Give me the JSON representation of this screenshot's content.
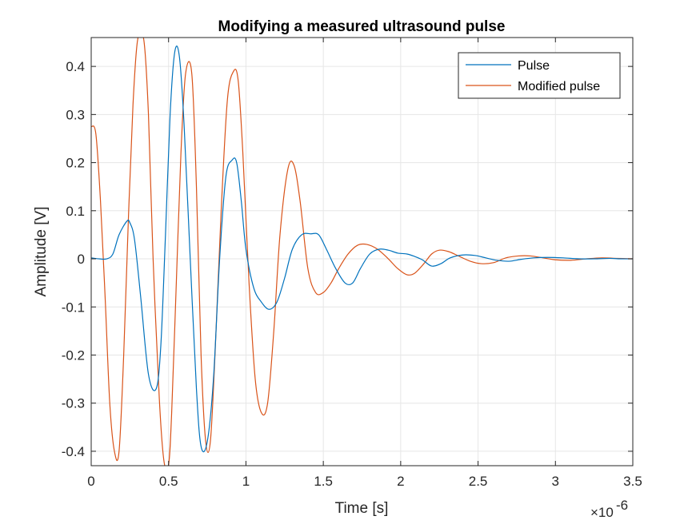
{
  "chart_data": {
    "type": "line",
    "title": "Modifying a measured ultrasound pulse",
    "xlabel": "Time [s]",
    "ylabel": "Amplitude [V]",
    "x_multiplier_label": "×10",
    "x_multiplier_exponent": "-6",
    "xlim": [
      0,
      3.5
    ],
    "ylim": [
      -0.43,
      0.46
    ],
    "x_ticks": [
      0,
      0.5,
      1,
      1.5,
      2,
      2.5,
      3,
      3.5
    ],
    "x_tick_labels": [
      "0",
      "0.5",
      "1",
      "1.5",
      "2",
      "2.5",
      "3",
      "3.5"
    ],
    "y_ticks": [
      -0.4,
      -0.3,
      -0.2,
      -0.1,
      0,
      0.1,
      0.2,
      0.3,
      0.4
    ],
    "y_tick_labels": [
      "-0.4",
      "-0.3",
      "-0.2",
      "-0.1",
      "0",
      "0.1",
      "0.2",
      "0.3",
      "0.4"
    ],
    "grid": true,
    "legend_position": "top-right",
    "series": [
      {
        "name": "Pulse",
        "color": "#0072BD",
        "x": [
          0,
          0.05,
          0.1,
          0.14,
          0.18,
          0.23,
          0.25,
          0.28,
          0.32,
          0.37,
          0.42,
          0.45,
          0.48,
          0.51,
          0.54,
          0.57,
          0.6,
          0.64,
          0.68,
          0.71,
          0.75,
          0.79,
          0.83,
          0.87,
          0.91,
          0.94,
          0.97,
          1.0,
          1.05,
          1.1,
          1.15,
          1.2,
          1.25,
          1.3,
          1.36,
          1.42,
          1.47,
          1.52,
          1.58,
          1.64,
          1.69,
          1.74,
          1.8,
          1.86,
          1.92,
          1.98,
          2.04,
          2.09,
          2.14,
          2.2,
          2.26,
          2.32,
          2.4,
          2.48,
          2.55,
          2.62,
          2.7,
          2.78,
          2.86,
          2.95,
          3.05,
          3.15,
          3.25,
          3.35,
          3.42,
          3.5
        ],
        "y": [
          0.002,
          0.0,
          0.0,
          0.01,
          0.05,
          0.078,
          0.075,
          0.04,
          -0.08,
          -0.24,
          -0.27,
          -0.18,
          0.05,
          0.3,
          0.43,
          0.42,
          0.28,
          0.0,
          -0.27,
          -0.39,
          -0.38,
          -0.25,
          0.0,
          0.17,
          0.205,
          0.2,
          0.12,
          0.02,
          -0.06,
          -0.09,
          -0.105,
          -0.09,
          -0.04,
          0.02,
          0.05,
          0.052,
          0.05,
          0.02,
          -0.02,
          -0.05,
          -0.05,
          -0.02,
          0.01,
          0.02,
          0.018,
          0.012,
          0.01,
          0.005,
          -0.002,
          -0.015,
          -0.01,
          0.002,
          0.008,
          0.007,
          0.002,
          -0.003,
          -0.005,
          -0.001,
          0.002,
          0.003,
          0.002,
          0.0,
          0.0,
          0.001,
          0.0,
          0.0
        ]
      },
      {
        "name": "Modified pulse",
        "color": "#D95319",
        "x": [
          0,
          0.03,
          0.06,
          0.09,
          0.12,
          0.15,
          0.18,
          0.21,
          0.24,
          0.27,
          0.3,
          0.34,
          0.37,
          0.4,
          0.44,
          0.47,
          0.5,
          0.52,
          0.55,
          0.58,
          0.61,
          0.65,
          0.68,
          0.71,
          0.74,
          0.77,
          0.8,
          0.84,
          0.88,
          0.92,
          0.95,
          0.98,
          1.02,
          1.06,
          1.1,
          1.14,
          1.18,
          1.22,
          1.27,
          1.31,
          1.35,
          1.4,
          1.45,
          1.5,
          1.55,
          1.6,
          1.66,
          1.72,
          1.78,
          1.85,
          1.92,
          1.98,
          2.04,
          2.09,
          2.15,
          2.2,
          2.25,
          2.31,
          2.38,
          2.45,
          2.52,
          2.6,
          2.68,
          2.76,
          2.84,
          2.92,
          3.0,
          3.1,
          3.2,
          3.3,
          3.4,
          3.5
        ],
        "y": [
          0.275,
          0.26,
          0.12,
          -0.08,
          -0.3,
          -0.4,
          -0.4,
          -0.2,
          0.08,
          0.32,
          0.455,
          0.455,
          0.3,
          0.0,
          -0.29,
          -0.42,
          -0.43,
          -0.32,
          -0.05,
          0.22,
          0.385,
          0.385,
          0.15,
          -0.2,
          -0.38,
          -0.38,
          -0.2,
          0.1,
          0.33,
          0.39,
          0.37,
          0.22,
          -0.05,
          -0.25,
          -0.32,
          -0.3,
          -0.15,
          0.05,
          0.185,
          0.195,
          0.12,
          -0.02,
          -0.07,
          -0.07,
          -0.05,
          -0.02,
          0.01,
          0.028,
          0.03,
          0.02,
          0.0,
          -0.02,
          -0.033,
          -0.03,
          -0.01,
          0.01,
          0.018,
          0.015,
          0.005,
          -0.005,
          -0.01,
          -0.008,
          0.002,
          0.006,
          0.006,
          0.002,
          -0.002,
          -0.003,
          0.0,
          0.002,
          0.001,
          0.0
        ]
      }
    ]
  }
}
